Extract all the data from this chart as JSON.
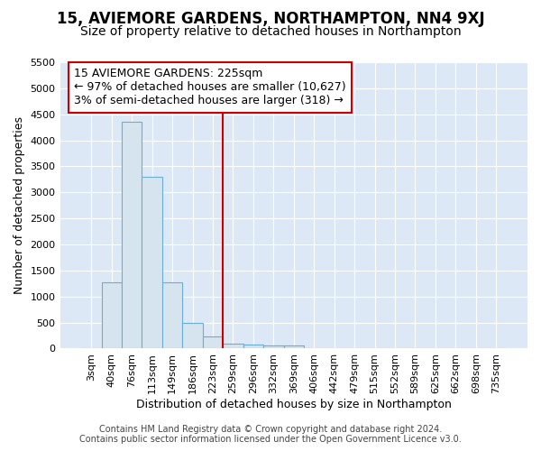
{
  "title": "15, AVIEMORE GARDENS, NORTHAMPTON, NN4 9XJ",
  "subtitle": "Size of property relative to detached houses in Northampton",
  "xlabel": "Distribution of detached houses by size in Northampton",
  "ylabel": "Number of detached properties",
  "bin_labels": [
    "3sqm",
    "40sqm",
    "76sqm",
    "113sqm",
    "149sqm",
    "186sqm",
    "223sqm",
    "259sqm",
    "296sqm",
    "332sqm",
    "369sqm",
    "406sqm",
    "442sqm",
    "479sqm",
    "515sqm",
    "552sqm",
    "589sqm",
    "625sqm",
    "662sqm",
    "698sqm",
    "735sqm"
  ],
  "bar_values": [
    0,
    1270,
    4350,
    3300,
    1270,
    490,
    230,
    100,
    80,
    60,
    60,
    0,
    0,
    0,
    0,
    0,
    0,
    0,
    0,
    0,
    0
  ],
  "bar_color": "#d6e4f0",
  "bar_edgecolor": "#6aaed6",
  "red_line_x": 6.5,
  "red_line_color": "#cc0000",
  "ylim": [
    0,
    5500
  ],
  "yticks": [
    0,
    500,
    1000,
    1500,
    2000,
    2500,
    3000,
    3500,
    4000,
    4500,
    5000,
    5500
  ],
  "annotation_title": "15 AVIEMORE GARDENS: 225sqm",
  "annotation_line1": "← 97% of detached houses are smaller (10,627)",
  "annotation_line2": "3% of semi-detached houses are larger (318) →",
  "annotation_box_facecolor": "#ffffff",
  "annotation_box_edgecolor": "#cc0000",
  "footnote": "Contains HM Land Registry data © Crown copyright and database right 2024.\nContains public sector information licensed under the Open Government Licence v3.0.",
  "fig_bg_color": "#ffffff",
  "plot_bg_color": "#dce8f5",
  "grid_color": "#ffffff",
  "title_fontsize": 12,
  "subtitle_fontsize": 10,
  "axis_label_fontsize": 9,
  "tick_fontsize": 8,
  "annotation_fontsize": 9,
  "footnote_fontsize": 7
}
